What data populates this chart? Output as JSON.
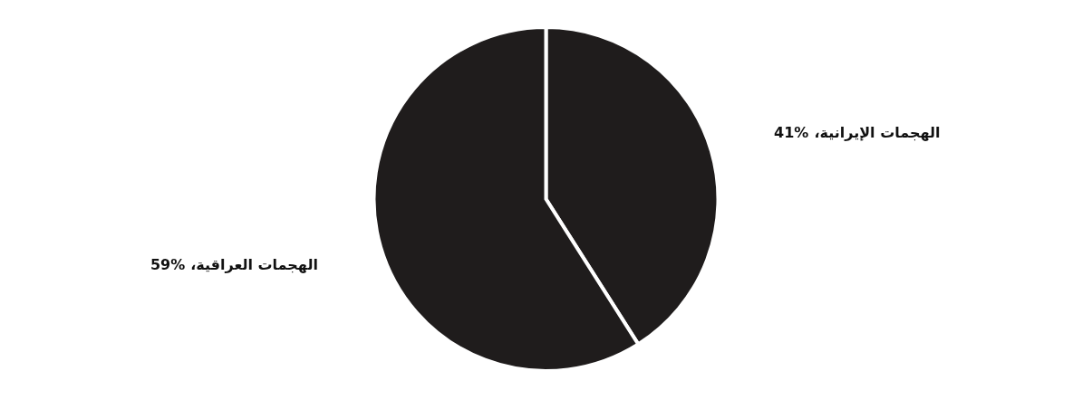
{
  "chart_data": {
    "type": "pie",
    "categories": [
      "الهجمات الإيرانية،",
      "الهجمات العراقية،"
    ],
    "values": [
      41,
      59
    ],
    "colors": [
      "#1f1c1c",
      "#1f1c1c"
    ],
    "value_labels": [
      "41%",
      "59%"
    ]
  }
}
